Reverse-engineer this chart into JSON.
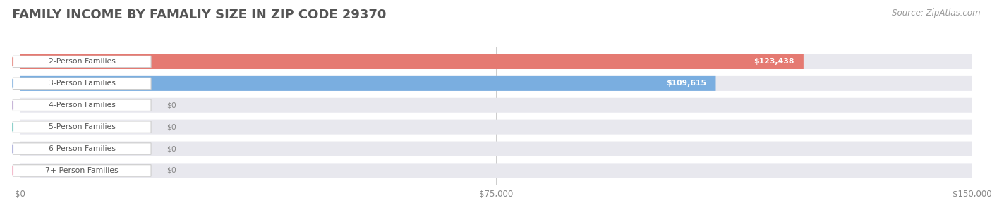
{
  "title": "FAMILY INCOME BY FAMALIY SIZE IN ZIP CODE 29370",
  "source": "Source: ZipAtlas.com",
  "categories": [
    "2-Person Families",
    "3-Person Families",
    "4-Person Families",
    "5-Person Families",
    "6-Person Families",
    "7+ Person Families"
  ],
  "values": [
    123438,
    109615,
    0,
    0,
    0,
    0
  ],
  "bar_colors": [
    "#e57a72",
    "#7aaee0",
    "#b89ece",
    "#68c4bc",
    "#9fa3d8",
    "#f4a8be"
  ],
  "value_labels": [
    "$123,438",
    "$109,615",
    "$0",
    "$0",
    "$0",
    "$0"
  ],
  "xlim": [
    0,
    150000
  ],
  "xticks": [
    0,
    75000,
    150000
  ],
  "xticklabels": [
    "$0",
    "$75,000",
    "$150,000"
  ],
  "background_color": "#ffffff",
  "bar_bg_color": "#e8e8ee",
  "title_fontsize": 13,
  "source_fontsize": 8.5,
  "title_color": "#555555",
  "source_color": "#999999"
}
